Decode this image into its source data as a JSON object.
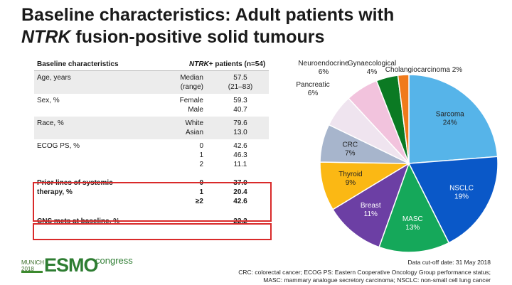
{
  "title": {
    "line1": "Baseline characteristics: Adult patients with",
    "line2_italic": "NTRK",
    "line2_rest": " fusion-positive solid tumours"
  },
  "table": {
    "header_col1": "Baseline characteristics",
    "header_col3_italic": "NTRK",
    "header_col3_rest": "+ patients (n=54)",
    "rows": [
      {
        "label": "Age, years",
        "sub": [
          "Median",
          "(range)"
        ],
        "val": [
          "57.5",
          "(21–83)"
        ]
      },
      {
        "label": "Sex, %",
        "sub": [
          "Female",
          "Male"
        ],
        "val": [
          "59.3",
          "40.7"
        ]
      },
      {
        "label": "Race, %",
        "sub": [
          "White",
          "Asian"
        ],
        "val": [
          "79.6",
          "13.0"
        ]
      },
      {
        "label": "ECOG PS, %",
        "sub": [
          "0",
          "1",
          "2"
        ],
        "val": [
          "42.6",
          "46.3",
          "11.1"
        ]
      },
      {
        "label": [
          "Prior lines of systemic",
          "therapy, %"
        ],
        "sub": [
          "0",
          "1",
          "≥2"
        ],
        "val": [
          "37.0",
          "20.4",
          "42.6"
        ]
      },
      {
        "label": "CNS mets at baseline, %",
        "sub": [
          ""
        ],
        "val": [
          "22.2"
        ]
      }
    ]
  },
  "chart_data": {
    "type": "pie",
    "title": "",
    "slices": [
      {
        "label": "Sarcoma",
        "value": 24,
        "pct": "24%",
        "color": "#56b4e9"
      },
      {
        "label": "NSCLC",
        "value": 19,
        "pct": "19%",
        "color": "#0a58c8"
      },
      {
        "label": "MASC",
        "value": 13,
        "pct": "13%",
        "color": "#15a85a"
      },
      {
        "label": "Breast",
        "value": 11,
        "pct": "11%",
        "color": "#6c3fa4"
      },
      {
        "label": "Thyroid",
        "value": 9,
        "pct": "9%",
        "color": "#fbb814"
      },
      {
        "label": "CRC",
        "value": 7,
        "pct": "7%",
        "color": "#a7b5cc"
      },
      {
        "label": "Pancreatic",
        "value": 6,
        "pct": "6%",
        "color": "#efe4ef"
      },
      {
        "label": "Neuroendocrine",
        "value": 6,
        "pct": "6%",
        "color": "#f2c3dd"
      },
      {
        "label": "Gynaecological",
        "value": 4,
        "pct": "4%",
        "color": "#0b7a23"
      },
      {
        "label": "Cholangiocarcinoma",
        "value": 2,
        "pct": "2%",
        "color": "#f07a1c"
      }
    ]
  },
  "footer": {
    "city": "MUNICH",
    "year": "2018",
    "logo": "ESMO",
    "logo_suffix": "congress",
    "cutoff": "Data cut-off date: 31 May 2018",
    "footnote1": "CRC: colorectal cancer; ECOG PS: Eastern Cooperative Oncology Group performance status;",
    "footnote2": "MASC: mammary analogue secretory carcinoma; NSCLC: non-small cell lung cancer"
  }
}
